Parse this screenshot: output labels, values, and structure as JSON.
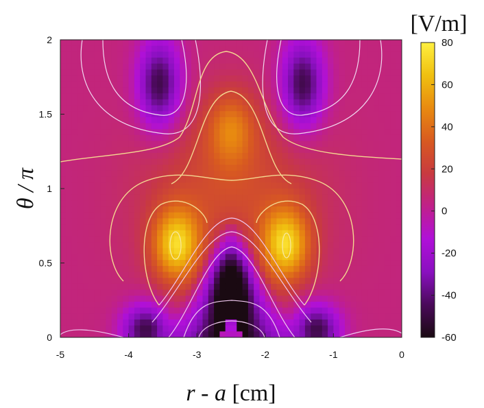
{
  "chart_data": {
    "type": "heatmap",
    "title": "",
    "xlabel_italic": "r",
    "xlabel_rest": " - ",
    "xlabel_italic2": "a",
    "xlabel_unit": " [cm]",
    "ylabel_italic": "θ / π",
    "xlim": [
      -5,
      0
    ],
    "ylim": [
      0,
      2
    ],
    "x_ticks": [
      "-5",
      "-4",
      "-3",
      "-2",
      "-1",
      "0"
    ],
    "y_ticks": [
      "0",
      "0.5",
      "1",
      "1.5",
      "2"
    ],
    "colorbar": {
      "label": "[V/m]",
      "range": [
        -60,
        80
      ],
      "ticks": [
        "-60",
        "-40",
        "-20",
        "0",
        "20",
        "40",
        "60",
        "80"
      ],
      "colormap": [
        "#1a0a12",
        "#4a0a5a",
        "#8a10c0",
        "#b010d8",
        "#c0208a",
        "#c83a40",
        "#d85a20",
        "#e88a10",
        "#f0c010",
        "#fff040"
      ]
    },
    "field_features": [
      {
        "kind": "minimum",
        "x": -3.55,
        "y": 1.7,
        "value": -55
      },
      {
        "kind": "minimum",
        "x": -1.45,
        "y": 1.7,
        "value": -55
      },
      {
        "kind": "minimum",
        "x": -2.5,
        "y": 0.35,
        "value": -55
      },
      {
        "kind": "minimum",
        "x": -3.75,
        "y": 0.05,
        "value": -55
      },
      {
        "kind": "minimum",
        "x": -1.25,
        "y": 0.05,
        "value": -55
      },
      {
        "kind": "maximum",
        "x": -3.3,
        "y": 0.62,
        "value": 70
      },
      {
        "kind": "maximum",
        "x": -1.7,
        "y": 0.62,
        "value": 70
      },
      {
        "kind": "maximum",
        "x": -2.5,
        "y": 1.4,
        "value": 40
      }
    ],
    "background_value": 5
  }
}
